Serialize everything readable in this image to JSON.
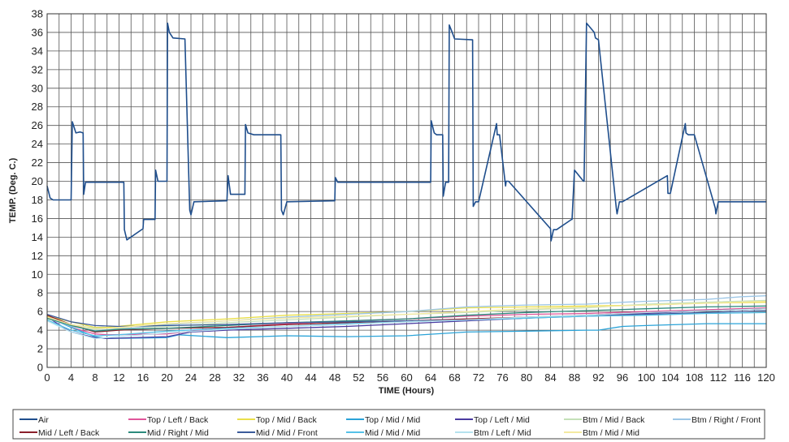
{
  "chart_data": {
    "type": "line",
    "xlabel": "TIME (Hours)",
    "ylabel": "TEMP. (Deg. C.)",
    "xlim": [
      0,
      120
    ],
    "ylim": [
      0,
      38
    ],
    "x_ticks": [
      0,
      4,
      8,
      12,
      16,
      20,
      24,
      28,
      32,
      36,
      40,
      44,
      48,
      52,
      56,
      60,
      64,
      68,
      72,
      76,
      80,
      84,
      88,
      92,
      96,
      100,
      104,
      108,
      112,
      116,
      120
    ],
    "y_ticks": [
      0,
      2,
      4,
      6,
      8,
      10,
      12,
      14,
      16,
      18,
      20,
      22,
      24,
      26,
      28,
      30,
      32,
      34,
      36,
      38
    ],
    "grid": true,
    "minor_x_step": 2,
    "legend_position": "bottom",
    "series": [
      {
        "name": "Air",
        "color": "#1f4e8c",
        "x": [
          0,
          0.5,
          1,
          4,
          4.2,
          4.8,
          5.5,
          6,
          6.1,
          6.4,
          12.8,
          12.9,
          13.3,
          16,
          16.1,
          18,
          18.1,
          18.5,
          20,
          20.1,
          20.4,
          21,
          23,
          23.8,
          24,
          24.5,
          30,
          30.2,
          30.6,
          33,
          33.1,
          33.5,
          34.5,
          39,
          39.1,
          39.4,
          40,
          48,
          48.1,
          48.5,
          64,
          64.1,
          64.6,
          65,
          66,
          66.1,
          66.5,
          67,
          67.1,
          67.6,
          68,
          71,
          71.1,
          71.5,
          72,
          75,
          75.1,
          75.5,
          76.5,
          76.6,
          77,
          84,
          84.1,
          84.5,
          85,
          87.5,
          87.6,
          88,
          89.5,
          89.6,
          90,
          91.3,
          91.5,
          92,
          95,
          95.1,
          95.5,
          96,
          103.5,
          103.6,
          104,
          106.5,
          106.6,
          107,
          108,
          111.5,
          111.6,
          112,
          120
        ],
        "values": [
          19.5,
          18.2,
          18,
          18,
          26.4,
          25.2,
          25.3,
          25.2,
          18.6,
          19.9,
          19.9,
          14.8,
          13.7,
          14.9,
          15.9,
          15.9,
          21.2,
          20,
          20,
          37,
          36,
          35.4,
          35.3,
          16.9,
          16.4,
          17.8,
          17.9,
          20.6,
          18.6,
          18.6,
          26.1,
          25.2,
          25,
          25,
          16.9,
          16.4,
          17.8,
          17.9,
          20.4,
          19.9,
          19.9,
          26.5,
          25.2,
          25,
          25,
          18.4,
          19.9,
          19.9,
          36.8,
          36,
          35.3,
          35.2,
          17.3,
          17.8,
          17.8,
          26.2,
          25,
          25,
          19.5,
          20,
          20,
          14.9,
          13.6,
          14.8,
          14.8,
          15.9,
          15.9,
          21.2,
          20,
          20,
          37,
          36,
          35.4,
          35.2,
          17,
          16.5,
          17.8,
          17.8,
          20.6,
          18.7,
          18.7,
          26.2,
          25.2,
          25,
          25,
          17.1,
          16.5,
          17.8,
          17.8
        ]
      },
      {
        "name": "Top / Left / Back",
        "color": "#e0559a",
        "x": [
          0,
          4,
          8,
          10,
          20,
          30,
          40,
          50,
          60,
          70,
          80,
          90,
          100,
          110,
          120
        ],
        "values": [
          5.5,
          4.3,
          3.6,
          3.5,
          3.6,
          4.3,
          4.7,
          5,
          5.2,
          5.5,
          5.7,
          5.8,
          6,
          6.2,
          6.4
        ]
      },
      {
        "name": "Top / Mid / Back",
        "color": "#eadf4a",
        "x": [
          0,
          4,
          8,
          10,
          20,
          30,
          40,
          50,
          60,
          70,
          80,
          90,
          100,
          110,
          120
        ],
        "values": [
          5.5,
          4.9,
          4.3,
          4.3,
          4.9,
          5.2,
          5.6,
          5.8,
          6,
          6.4,
          6.5,
          6.6,
          6.7,
          6.9,
          7
        ]
      },
      {
        "name": "Top / Mid / Mid",
        "color": "#2aa3d8",
        "x": [
          0,
          4,
          8,
          10,
          20,
          22,
          30,
          40,
          50,
          60,
          70,
          80,
          90,
          92,
          96,
          100,
          110,
          120
        ],
        "values": [
          5.4,
          4.3,
          3.3,
          3.1,
          3.2,
          3.5,
          3.2,
          3.4,
          3.3,
          3.4,
          3.8,
          3.9,
          4,
          4,
          4.4,
          4.5,
          4.7,
          4.7
        ]
      },
      {
        "name": "Top / Left / Mid",
        "color": "#4a3aa0",
        "x": [
          0,
          4,
          8,
          10,
          20,
          24,
          30,
          40,
          50,
          60,
          70,
          80,
          90,
          100,
          110,
          120
        ],
        "values": [
          5.4,
          3.8,
          3.2,
          3.1,
          3.3,
          3.8,
          4,
          4.2,
          4.4,
          4.7,
          5,
          5.3,
          5.6,
          5.8,
          6.1,
          6.3
        ]
      },
      {
        "name": "Btm / Mid / Back",
        "color": "#c4e0b8",
        "x": [
          0,
          4,
          8,
          12,
          20,
          30,
          40,
          50,
          60,
          70,
          80,
          90,
          100,
          110,
          120
        ],
        "values": [
          5.2,
          4.6,
          4.2,
          4.2,
          4.4,
          4.8,
          5.1,
          5.4,
          5.7,
          5.9,
          6.2,
          6.4,
          6.8,
          7,
          7.2
        ]
      },
      {
        "name": "Btm / Right / Front",
        "color": "#9cc6e6",
        "x": [
          0,
          4,
          8,
          12,
          20,
          30,
          40,
          50,
          60,
          70,
          80,
          90,
          96,
          100,
          110,
          116,
          120
        ],
        "values": [
          5.3,
          4.4,
          4,
          4.1,
          4.6,
          5,
          5.4,
          5.7,
          6,
          6.5,
          6.7,
          6.8,
          7,
          7.1,
          7.3,
          7.6,
          7.7
        ]
      },
      {
        "name": "Mid / Left / Back",
        "color": "#8a1f2a",
        "x": [
          0,
          4,
          8,
          12,
          20,
          30,
          40,
          50,
          60,
          70,
          80,
          90,
          100,
          110,
          120
        ],
        "values": [
          5.6,
          4.6,
          3.8,
          4,
          4.2,
          4.3,
          4.6,
          4.8,
          5,
          5.2,
          5.4,
          5.6,
          5.9,
          6.1,
          6.3
        ]
      },
      {
        "name": "Mid / Right / Mid",
        "color": "#2c8a7c",
        "x": [
          0,
          4,
          8,
          12,
          20,
          30,
          40,
          50,
          60,
          70,
          80,
          90,
          100,
          110,
          120
        ],
        "values": [
          5.3,
          4.5,
          3.9,
          4.1,
          4.2,
          4.5,
          4.8,
          5,
          5.2,
          5.6,
          5.9,
          6.1,
          6.3,
          6.5,
          6.6
        ]
      },
      {
        "name": "Mid / Mid / Front",
        "color": "#3b5b9a",
        "x": [
          0,
          4,
          8,
          12,
          20,
          30,
          40,
          50,
          60,
          70,
          80,
          90,
          100,
          110,
          120
        ],
        "values": [
          5.7,
          4.9,
          4.5,
          4.4,
          4.5,
          4.6,
          4.8,
          4.9,
          5,
          5.1,
          5.3,
          5.5,
          5.7,
          5.9,
          6.1
        ]
      },
      {
        "name": "Mid / Mid / Mid",
        "color": "#55c1e8",
        "x": [
          0,
          4,
          8,
          12,
          20,
          30,
          40,
          50,
          60,
          70,
          80,
          90,
          100,
          110,
          120
        ],
        "values": [
          5.1,
          4,
          3.4,
          3.5,
          3.9,
          4.2,
          4.4,
          4.7,
          4.9,
          5.1,
          5.3,
          5.5,
          5.6,
          5.8,
          5.9
        ]
      },
      {
        "name": "Btm / Left / Mid",
        "color": "#b5e2ee",
        "x": [
          0,
          4,
          8,
          12,
          20,
          30,
          40,
          50,
          60,
          70,
          80,
          90,
          100,
          110,
          120
        ],
        "values": [
          5,
          3.8,
          3.1,
          3.3,
          3.7,
          4.1,
          4.4,
          4.6,
          4.9,
          5.1,
          5.4,
          5.6,
          5.9,
          6.1,
          6.3
        ]
      },
      {
        "name": "Btm / Mid / Mid",
        "color": "#f4e9a0",
        "x": [
          0,
          4,
          8,
          12,
          20,
          30,
          40,
          50,
          60,
          70,
          80,
          90,
          100,
          110,
          120
        ],
        "values": [
          5.4,
          4.6,
          4.1,
          4.3,
          4.7,
          5,
          5.3,
          5.5,
          5.7,
          6,
          6.3,
          6.5,
          6.7,
          6.9,
          7.1
        ]
      }
    ]
  }
}
